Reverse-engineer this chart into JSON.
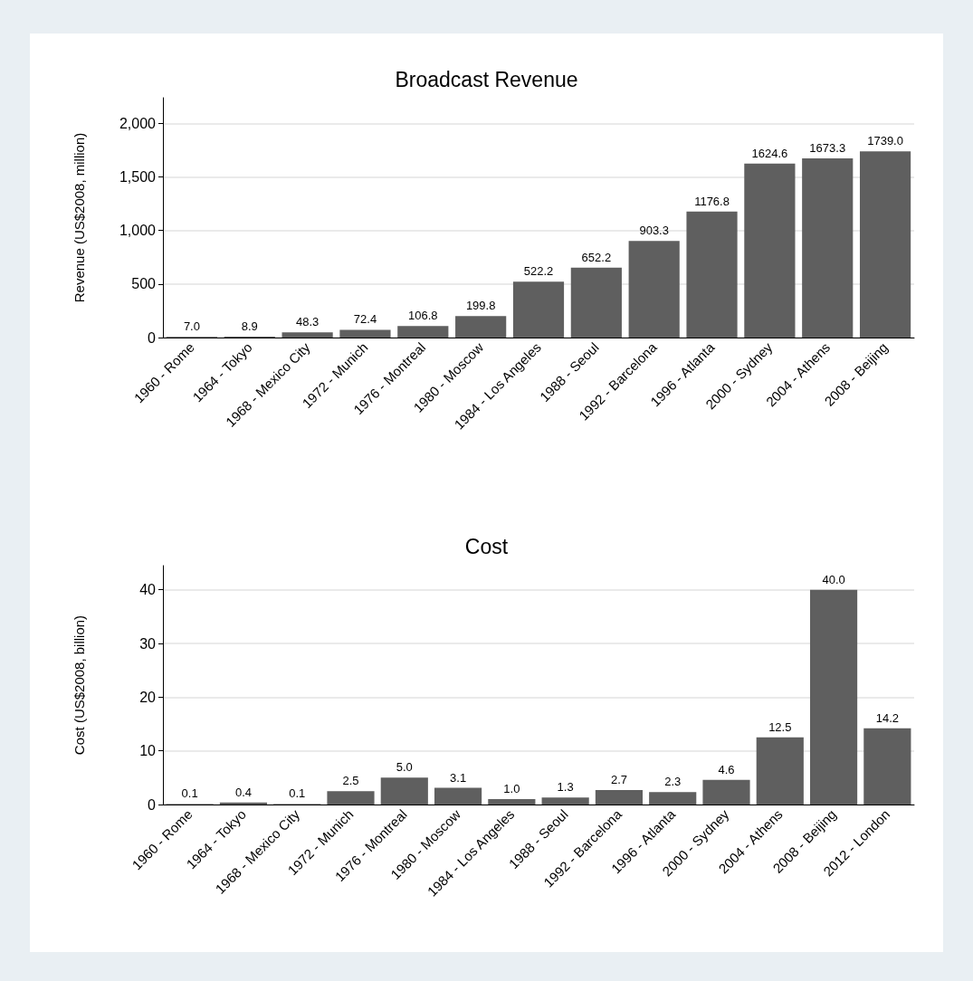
{
  "chart_data": [
    {
      "type": "bar",
      "title": "Broadcast Revenue",
      "ylabel": "Revenue (US$2008, million)",
      "categories": [
        "1960 - Rome",
        "1964 - Tokyo",
        "1968 - Mexico City",
        "1972 - Munich",
        "1976 - Montreal",
        "1980 - Moscow",
        "1984 - Los Angeles",
        "1988 - Seoul",
        "1992 - Barcelona",
        "1996 - Atlanta",
        "2000 - Sydney",
        "2004 - Athens",
        "2008 - Beijing"
      ],
      "values": [
        7.0,
        8.9,
        48.3,
        72.4,
        106.8,
        199.8,
        522.2,
        652.2,
        903.3,
        1176.8,
        1624.6,
        1673.3,
        1739.0
      ],
      "value_labels": [
        "7.0",
        "8.9",
        "48.3",
        "72.4",
        "106.8",
        "199.8",
        "522.2",
        "652.2",
        "903.3",
        "1176.8",
        "1624.6",
        "1673.3",
        "1739.0"
      ],
      "color": "#5f5f5f",
      "ylim": [
        0,
        2240
      ],
      "yticks": [
        0,
        500,
        {
          "value": 1000,
          "label": "1,000"
        },
        {
          "value": 1500,
          "label": "1,500"
        },
        {
          "value": 2000,
          "label": "2,000"
        }
      ],
      "grid": "y"
    },
    {
      "type": "bar",
      "title": "Cost",
      "ylabel": "Cost (US$2008, billion)",
      "categories": [
        "1960 - Rome",
        "1964 - Tokyo",
        "1968 - Mexico City",
        "1972 - Munich",
        "1976 - Montreal",
        "1980 - Moscow",
        "1984 - Los Angeles",
        "1988 - Seoul",
        "1992 - Barcelona",
        "1996 - Atlanta",
        "2000 - Sydney",
        "2004 - Athens",
        "2008 - Beijing",
        "2012 - London"
      ],
      "values": [
        0.1,
        0.4,
        0.1,
        2.5,
        5.0,
        3.1,
        1.0,
        1.3,
        2.7,
        2.3,
        4.6,
        12.5,
        40.0,
        14.2
      ],
      "value_labels": [
        "0.1",
        "0.4",
        "0.1",
        "2.5",
        "5.0",
        "3.1",
        "1.0",
        "1.3",
        "2.7",
        "2.3",
        "4.6",
        "12.5",
        "40.0",
        "14.2"
      ],
      "color": "#5f5f5f",
      "ylim": [
        0,
        44.5
      ],
      "yticks": [
        0,
        10,
        20,
        30,
        40
      ],
      "grid": "y"
    }
  ]
}
